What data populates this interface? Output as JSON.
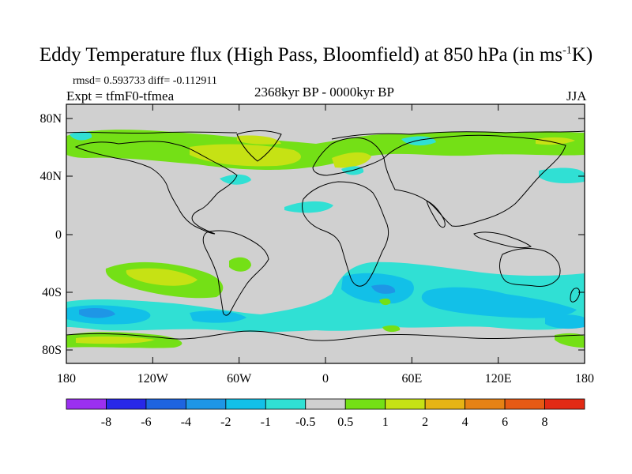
{
  "header": {
    "title_main": "Eddy Temperature flux (High Pass, Bloomfield) at 850 hPa (in ms",
    "title_sup": "-1",
    "title_end": "K)",
    "stats": "rmsd= 0.593733 diff= -0.112911",
    "experiment": "Expt = tfmF0-tfmea",
    "period": "2368kyr BP - 0000kyr BP",
    "season": "JJA"
  },
  "map": {
    "lat_labels": [
      "80N",
      "40N",
      "0",
      "40S",
      "80S"
    ],
    "lon_labels": [
      "180",
      "120W",
      "60W",
      "0",
      "60E",
      "120E",
      "180"
    ],
    "land_color": "#d0d0d0",
    "coast_color": "#000000"
  },
  "colorbar": {
    "labels": [
      "-8",
      "-6",
      "-4",
      "-2",
      "-1",
      "-0.5",
      "0.5",
      "1",
      "2",
      "4",
      "6",
      "8"
    ],
    "colors": [
      "#9b30f0",
      "#2828e8",
      "#1e64e0",
      "#1e96e6",
      "#12c0e8",
      "#30e0d4",
      "#d0d0d0",
      "#74e016",
      "#c6e214",
      "#e6b414",
      "#e68214",
      "#e65a14",
      "#e22a14"
    ]
  }
}
